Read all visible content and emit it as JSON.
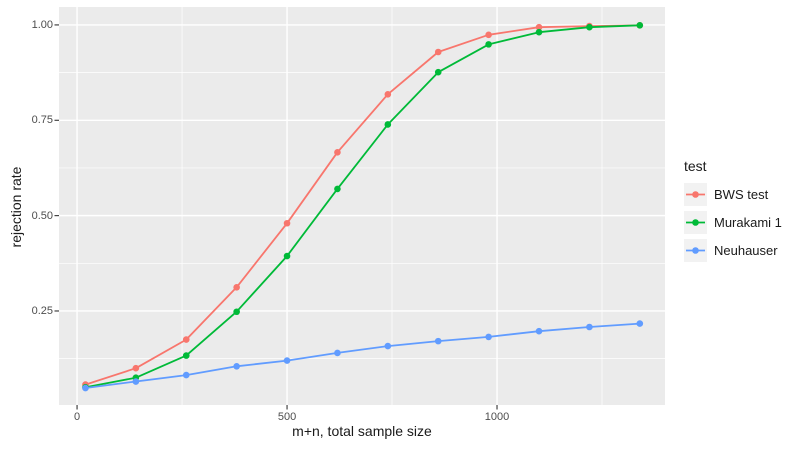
{
  "figure": {
    "background": "#FFFFFF",
    "panel_background": "#EBEBEB",
    "grid_color": "#FFFFFF",
    "tick_mark_color": "#333333",
    "tick_label_color": "#4D4D4D",
    "axis_title_color": "#1A1A1A",
    "legend_key_background": "#F2F2F2"
  },
  "chart_data": {
    "type": "line",
    "title": "",
    "xlabel": "m+n, total sample size",
    "ylabel": "rejection rate",
    "x": [
      20,
      140,
      260,
      380,
      500,
      620,
      740,
      860,
      980,
      1100,
      1220,
      1340
    ],
    "series": [
      {
        "name": "BWS test",
        "color": "#F8766D",
        "values": [
          0.057,
          0.1,
          0.175,
          0.312,
          0.48,
          0.666,
          0.818,
          0.929,
          0.974,
          0.994,
          0.997,
          0.999
        ]
      },
      {
        "name": "Murakami 1",
        "color": "#00BA38",
        "values": [
          0.05,
          0.075,
          0.133,
          0.248,
          0.394,
          0.57,
          0.739,
          0.876,
          0.949,
          0.981,
          0.994,
          0.999
        ]
      },
      {
        "name": "Neuhauser",
        "color": "#619CFF",
        "values": [
          0.048,
          0.065,
          0.082,
          0.105,
          0.12,
          0.14,
          0.158,
          0.171,
          0.182,
          0.197,
          0.208,
          0.217
        ]
      }
    ],
    "x_ticks": {
      "major": [
        0,
        500,
        1000
      ],
      "minor": [
        250,
        750,
        1250
      ],
      "labels": [
        "0",
        "500",
        "1000"
      ]
    },
    "y_ticks": {
      "major": [
        0.25,
        0.5,
        0.75,
        1.0
      ],
      "minor": [
        0.125,
        0.375,
        0.625,
        0.875
      ],
      "labels": [
        "0.25",
        "0.50",
        "0.75",
        "1.00"
      ]
    },
    "xlim": [
      -43,
      1400
    ],
    "ylim": [
      0.0035,
      1.047
    ],
    "grid": true,
    "legend": {
      "title": "test",
      "position": "right"
    }
  }
}
